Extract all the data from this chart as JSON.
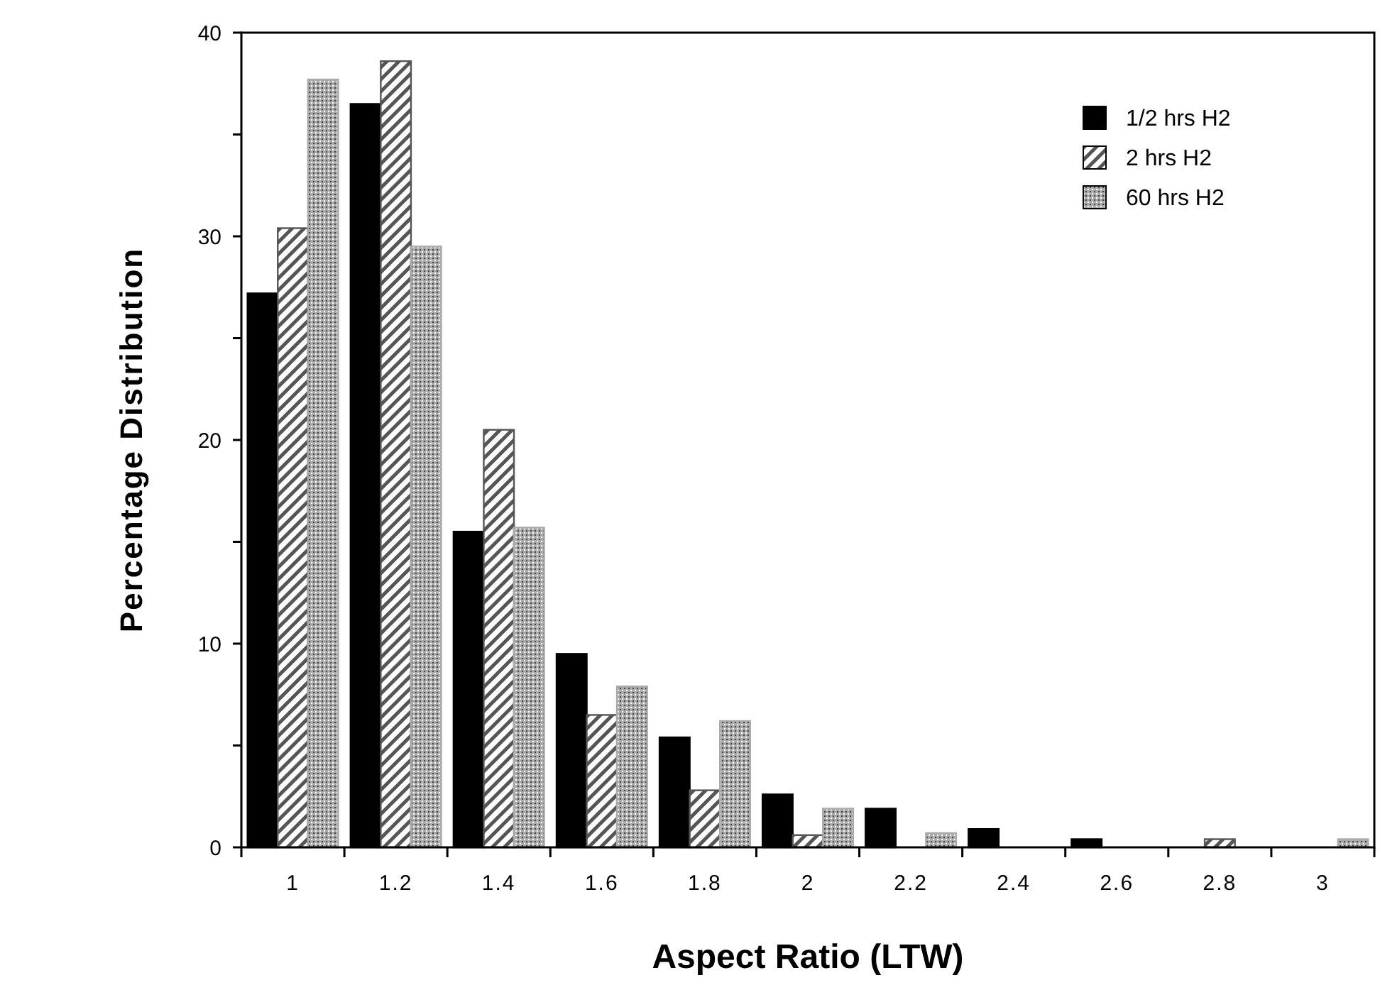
{
  "chart_data": {
    "type": "bar",
    "xlabel": "Aspect Ratio (LTW)",
    "ylabel": "Percentage Distribution",
    "categories": [
      "1",
      "1.2",
      "1.4",
      "1.6",
      "1.8",
      "2",
      "2.2",
      "2.4",
      "2.6",
      "2.8",
      "3"
    ],
    "series": [
      {
        "name": "1/2 hrs H2",
        "color": "#000000",
        "values": [
          27.2,
          36.5,
          15.5,
          9.5,
          5.4,
          2.6,
          1.9,
          0.9,
          0.4,
          0,
          0
        ]
      },
      {
        "name": "2 hrs H2",
        "color": "#555555",
        "values": [
          30.4,
          38.6,
          20.5,
          6.5,
          2.8,
          0.6,
          0,
          0,
          0,
          0.4,
          0
        ]
      },
      {
        "name": "60 hrs H2",
        "color": "#aaaaaa",
        "values": [
          37.7,
          29.5,
          15.7,
          7.9,
          6.2,
          1.9,
          0.7,
          0,
          0,
          0,
          0.4
        ]
      }
    ],
    "ylim": [
      0,
      40
    ],
    "yticks": [
      0,
      {
        "value": 5,
        "label": null
      },
      10,
      {
        "value": 15,
        "label": null
      },
      20,
      {
        "value": 25,
        "label": null
      },
      30,
      {
        "value": 35,
        "label": null
      },
      40
    ],
    "legend": "top right",
    "grid": false
  }
}
